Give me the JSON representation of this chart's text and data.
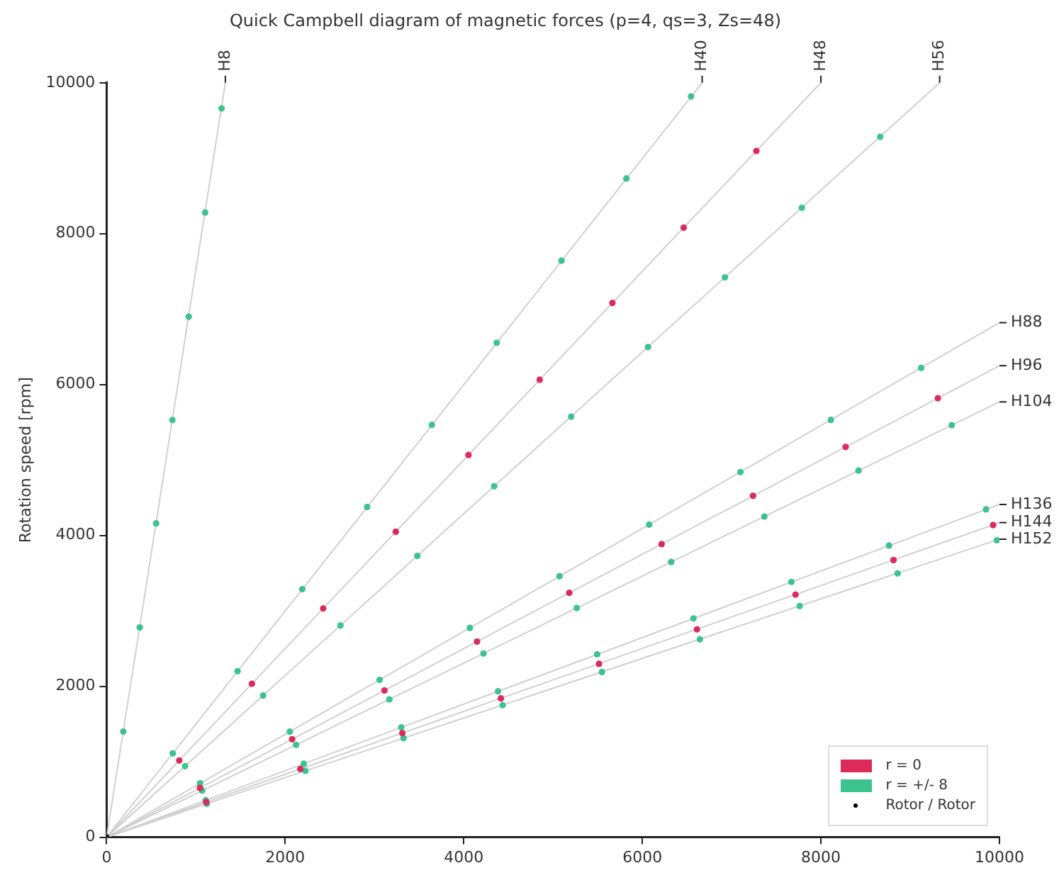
{
  "chart_data": {
    "type": "scatter",
    "title": "Quick Campbell diagram of magnetic forces (p=4, qs=3, Zs=48)",
    "ylabel": "Rotation speed [rpm]",
    "xlim": [
      0,
      10000
    ],
    "xticks": [
      0,
      2000,
      4000,
      6000,
      8000,
      10000
    ],
    "ylim": [
      0,
      10000
    ],
    "yticks": [
      0,
      2000,
      4000,
      6000,
      8000,
      10000
    ],
    "annotations": [
      {
        "text": "H8",
        "x": 1330,
        "y": 10000
      },
      {
        "text": "H40",
        "x": 6670,
        "y": 10000
      },
      {
        "text": "H48",
        "x": 8000,
        "y": 10000
      },
      {
        "text": "H56",
        "x": 9330,
        "y": 10000
      },
      {
        "text": "H88",
        "x": 10000,
        "y": 6820
      },
      {
        "text": "H96",
        "x": 10000,
        "y": 6250
      },
      {
        "text": "H104",
        "x": 10000,
        "y": 5770
      },
      {
        "text": "H136",
        "x": 10000,
        "y": 4410
      },
      {
        "text": "H144",
        "x": 10000,
        "y": 4170
      },
      {
        "text": "H152",
        "x": 10000,
        "y": 3950
      }
    ],
    "grid": false,
    "legend": "bottom right",
    "marker": "circle",
    "series": [
      {
        "type": "line",
        "marker": "none",
        "color": "#d0d0d0",
        "x": [
          0,
          1330
        ],
        "values": [
          0,
          10000
        ]
      },
      {
        "type": "line",
        "marker": "none",
        "color": "#d0d0d0",
        "x": [
          0,
          6670
        ],
        "values": [
          0,
          10000
        ]
      },
      {
        "type": "line",
        "marker": "none",
        "color": "#d0d0d0",
        "x": [
          0,
          8000
        ],
        "values": [
          0,
          10000
        ]
      },
      {
        "type": "line",
        "marker": "none",
        "color": "#d0d0d0",
        "x": [
          0,
          9330
        ],
        "values": [
          0,
          10000
        ]
      },
      {
        "type": "line",
        "marker": "none",
        "color": "#d0d0d0",
        "x": [
          0,
          10000
        ],
        "values": [
          0,
          6820
        ]
      },
      {
        "type": "line",
        "marker": "none",
        "color": "#d0d0d0",
        "x": [
          0,
          10000
        ],
        "values": [
          0,
          6250
        ]
      },
      {
        "type": "line",
        "marker": "none",
        "color": "#d0d0d0",
        "x": [
          0,
          10000
        ],
        "values": [
          0,
          5770
        ]
      },
      {
        "type": "line",
        "marker": "none",
        "color": "#d0d0d0",
        "x": [
          0,
          10000
        ],
        "values": [
          0,
          4410
        ]
      },
      {
        "type": "line",
        "marker": "none",
        "color": "#d0d0d0",
        "x": [
          0,
          10000
        ],
        "values": [
          0,
          4170
        ]
      },
      {
        "type": "line",
        "marker": "none",
        "color": "#d0d0d0",
        "x": [
          0,
          10000
        ],
        "values": [
          0,
          3950
        ]
      },
      {
        "name": "r = 0",
        "color": "#dc2a5a",
        "x": [
          814,
          1627,
          2426,
          3239,
          4053,
          4851,
          5665,
          6463,
          7277,
          1045,
          2078,
          3112,
          4149,
          5182,
          6216,
          7240,
          8277,
          9310,
          1116,
          2170,
          3312,
          4416,
          5515,
          6612,
          7716,
          8813,
          9929
        ],
        "values": [
          1017,
          2034,
          3032,
          4049,
          5066,
          6064,
          7081,
          8079,
          9096,
          653,
          1299,
          1945,
          2593,
          3239,
          3885,
          4525,
          5173,
          5819,
          465,
          904,
          1380,
          1840,
          2298,
          2755,
          3215,
          3672,
          4137
        ]
      },
      {
        "name": "r = +/- 8",
        "color": "#3cc390",
        "x": [
          187,
          371,
          555,
          737,
          920,
          1104,
          1288,
          741,
          1467,
          2192,
          2918,
          3643,
          4369,
          5095,
          5821,
          6546,
          879,
          1753,
          2619,
          3480,
          4341,
          5203,
          6064,
          6925,
          7787,
          8665,
          1047,
          2052,
          3058,
          4069,
          5073,
          6077,
          7099,
          8112,
          9123,
          1071,
          2122,
          3167,
          4221,
          5266,
          6323,
          7367,
          8422,
          9466,
          1110,
          2208,
          3300,
          4384,
          5494,
          6573,
          7670,
          8763,
          9849,
          1122,
          2227,
          3326,
          4436,
          5548,
          6645,
          7762,
          8859,
          9971
        ],
        "values": [
          1400,
          2780,
          4160,
          5530,
          6900,
          8280,
          9660,
          1111,
          2200,
          3288,
          4377,
          5465,
          6554,
          7642,
          8731,
          9819,
          942,
          1878,
          2806,
          3729,
          4652,
          5574,
          6497,
          7420,
          8343,
          9284,
          714,
          1399,
          2085,
          2774,
          3459,
          4143,
          4840,
          5531,
          6220,
          618,
          1224,
          1827,
          2435,
          3038,
          3648,
          4250,
          4859,
          5461,
          490,
          974,
          1456,
          1934,
          2424,
          2900,
          3384,
          3866,
          4345,
          443,
          879,
          1313,
          1751,
          2190,
          2623,
          3064,
          3497,
          3936
        ]
      },
      {
        "name": "Rotor / Rotor",
        "color": "#000000",
        "x": [
          0
        ],
        "values": [
          0
        ]
      }
    ]
  }
}
